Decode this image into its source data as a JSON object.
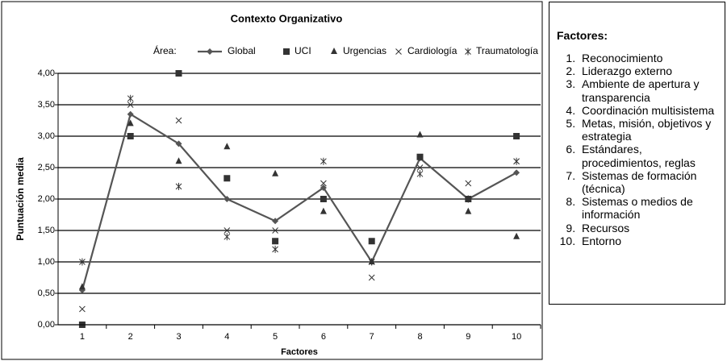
{
  "chart_data": {
    "type": "line",
    "title": "Contexto Organizativo",
    "legend_title": "Área:",
    "x_label": "Factores",
    "y_label": "Puntuación media",
    "categories": [
      "1",
      "2",
      "3",
      "4",
      "5",
      "6",
      "7",
      "8",
      "9",
      "10"
    ],
    "series": [
      {
        "name": "Global",
        "color": "#555555",
        "marker": "diamond",
        "line": true,
        "values": [
          0.55,
          3.35,
          2.88,
          2.0,
          1.65,
          2.18,
          1.0,
          2.65,
          2.0,
          2.42
        ]
      },
      {
        "name": "UCI",
        "color": "#333333",
        "marker": "square",
        "line": false,
        "values": [
          0.0,
          3.0,
          4.0,
          2.33,
          1.33,
          2.0,
          1.33,
          2.67,
          2.0,
          3.0
        ]
      },
      {
        "name": "Urgencias",
        "color": "#333333",
        "marker": "triangle",
        "line": false,
        "values": [
          0.6,
          3.2,
          2.6,
          2.83,
          2.4,
          1.8,
          1.0,
          3.02,
          1.8,
          1.4
        ]
      },
      {
        "name": "Cardiología",
        "color": "#333333",
        "marker": "x",
        "line": false,
        "values": [
          0.25,
          3.5,
          3.25,
          1.5,
          1.5,
          2.25,
          0.75,
          2.5,
          2.25,
          2.6
        ]
      },
      {
        "name": "Traumatología",
        "color": "#333333",
        "marker": "star",
        "line": false,
        "values": [
          1.0,
          3.6,
          2.2,
          1.4,
          1.2,
          2.6,
          1.0,
          2.4,
          2.0,
          2.6
        ]
      }
    ],
    "ylim": [
      0,
      4
    ],
    "yticks": [
      {
        "value": 0,
        "label": "0,00"
      },
      {
        "value": 0.5,
        "label": "0,50"
      },
      {
        "value": 1,
        "label": "1,00"
      },
      {
        "value": 1.5,
        "label": "1,50"
      },
      {
        "value": 2,
        "label": "2,00"
      },
      {
        "value": 2.5,
        "label": "2,50"
      },
      {
        "value": 3,
        "label": "3,00"
      },
      {
        "value": 3.5,
        "label": "3,50"
      },
      {
        "value": 4,
        "label": "4,00"
      }
    ],
    "grid": true
  },
  "side_panel": {
    "title": "Factores:",
    "items": [
      "Reconocimiento",
      "Liderazgo externo",
      "Ambiente de apertura y transparencia",
      "Coordinación multisistema",
      "Metas, misión, objetivos y estrategia",
      "Estándares, procedimientos, reglas",
      "Sistemas de formación (técnica)",
      "Sistemas o medios de información",
      "Recursos",
      "Entorno"
    ]
  }
}
